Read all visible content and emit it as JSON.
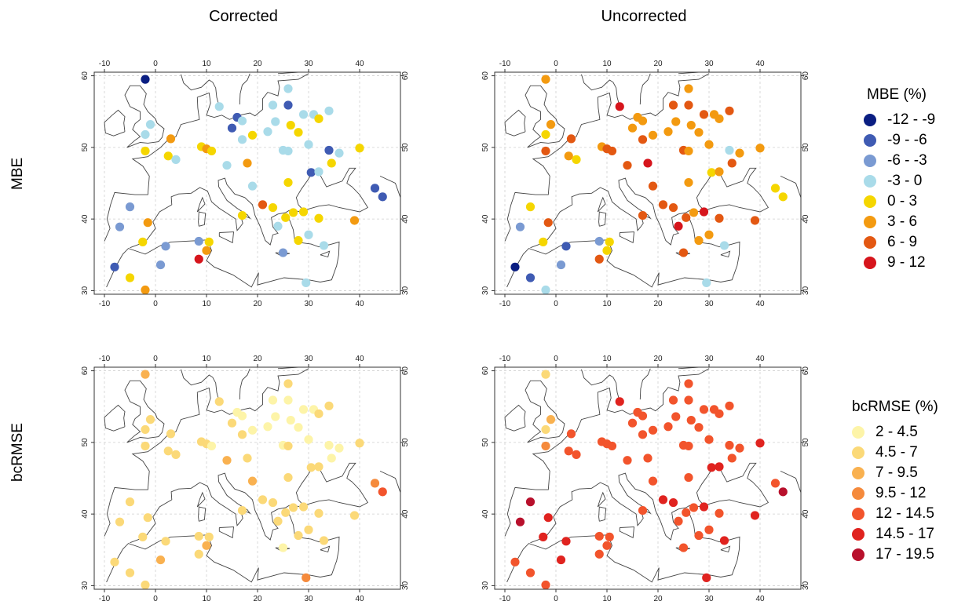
{
  "columns": [
    "Corrected",
    "Uncorrected"
  ],
  "rows": [
    "MBE",
    "bcRMSE"
  ],
  "axes": {
    "x_ticks": [
      "-10",
      "0",
      "10",
      "20",
      "30",
      "40"
    ],
    "x_values": [
      -10,
      0,
      10,
      20,
      30,
      40
    ],
    "y_ticks": [
      "30",
      "40",
      "50",
      "60"
    ],
    "y_values": [
      30,
      40,
      50,
      60
    ],
    "lon_range": [
      -12,
      48
    ],
    "lat_range": [
      29.5,
      60.5
    ]
  },
  "stations": [
    {
      "lon": -2,
      "lat": 59.5
    },
    {
      "lon": -1,
      "lat": 53.2
    },
    {
      "lon": -2,
      "lat": 51.8
    },
    {
      "lon": -2,
      "lat": 49.5
    },
    {
      "lon": 3,
      "lat": 51.2
    },
    {
      "lon": 2.5,
      "lat": 48.8
    },
    {
      "lon": 4,
      "lat": 48.3
    },
    {
      "lon": 9,
      "lat": 50.1
    },
    {
      "lon": 10,
      "lat": 49.8
    },
    {
      "lon": 11,
      "lat": 49.5
    },
    {
      "lon": 12.5,
      "lat": 55.7
    },
    {
      "lon": 15,
      "lat": 52.7
    },
    {
      "lon": 16,
      "lat": 54.2
    },
    {
      "lon": 17,
      "lat": 53.7
    },
    {
      "lon": 17,
      "lat": 51.1
    },
    {
      "lon": 19,
      "lat": 51.7
    },
    {
      "lon": 22,
      "lat": 52.2
    },
    {
      "lon": 23,
      "lat": 55.9
    },
    {
      "lon": 23.5,
      "lat": 53.6
    },
    {
      "lon": 26,
      "lat": 58.2
    },
    {
      "lon": 26,
      "lat": 55.9
    },
    {
      "lon": 26.5,
      "lat": 53.1
    },
    {
      "lon": 28,
      "lat": 52.1
    },
    {
      "lon": 29,
      "lat": 54.6
    },
    {
      "lon": 30,
      "lat": 50.4
    },
    {
      "lon": 31,
      "lat": 54.6
    },
    {
      "lon": 32,
      "lat": 54
    },
    {
      "lon": 34,
      "lat": 55.1
    },
    {
      "lon": 25,
      "lat": 49.6
    },
    {
      "lon": 26,
      "lat": 49.5
    },
    {
      "lon": 30.5,
      "lat": 46.5
    },
    {
      "lon": 32,
      "lat": 46.6
    },
    {
      "lon": 34,
      "lat": 49.6
    },
    {
      "lon": 34.5,
      "lat": 47.8
    },
    {
      "lon": 36,
      "lat": 49.2
    },
    {
      "lon": 40,
      "lat": 49.9
    },
    {
      "lon": 14,
      "lat": 47.5
    },
    {
      "lon": 18,
      "lat": 47.8
    },
    {
      "lon": 19,
      "lat": 44.6
    },
    {
      "lon": 26,
      "lat": 45.1
    },
    {
      "lon": 21,
      "lat": 42
    },
    {
      "lon": 23,
      "lat": 41.6
    },
    {
      "lon": 24,
      "lat": 39
    },
    {
      "lon": 25.5,
      "lat": 40.2
    },
    {
      "lon": 27,
      "lat": 40.9
    },
    {
      "lon": 29,
      "lat": 41
    },
    {
      "lon": 30,
      "lat": 37.8
    },
    {
      "lon": 32,
      "lat": 40.1
    },
    {
      "lon": 33,
      "lat": 36.3
    },
    {
      "lon": 28,
      "lat": 37
    },
    {
      "lon": 25,
      "lat": 35.3
    },
    {
      "lon": 29.5,
      "lat": 31.1
    },
    {
      "lon": 39,
      "lat": 39.8
    },
    {
      "lon": 43,
      "lat": 44.3
    },
    {
      "lon": 44.5,
      "lat": 43.1
    },
    {
      "lon": 17,
      "lat": 40.5
    },
    {
      "lon": 10.5,
      "lat": 36.8
    },
    {
      "lon": 10,
      "lat": 35.6
    },
    {
      "lon": 8.5,
      "lat": 36.9
    },
    {
      "lon": 8.5,
      "lat": 34.4
    },
    {
      "lon": 2,
      "lat": 36.2
    },
    {
      "lon": 1,
      "lat": 33.6
    },
    {
      "lon": -2.5,
      "lat": 36.8
    },
    {
      "lon": -1.5,
      "lat": 39.5
    },
    {
      "lon": -5,
      "lat": 41.7
    },
    {
      "lon": -7,
      "lat": 38.9
    },
    {
      "lon": -8,
      "lat": 33.3
    },
    {
      "lon": -5,
      "lat": 31.8
    },
    {
      "lon": -2,
      "lat": 30.1
    }
  ],
  "panels": {
    "mbe_corrected": [
      0,
      3,
      3,
      4,
      5,
      4,
      3,
      4,
      5,
      4,
      3,
      1,
      1,
      3,
      3,
      4,
      3,
      3,
      3,
      3,
      1,
      4,
      4,
      3,
      3,
      3,
      4,
      3,
      3,
      3,
      1,
      3,
      1,
      4,
      3,
      4,
      3,
      5,
      3,
      4,
      6,
      4,
      3,
      4,
      4,
      4,
      3,
      4,
      3,
      4,
      2,
      3,
      5,
      1,
      1,
      4,
      4,
      5,
      2,
      7,
      2,
      2,
      4,
      5,
      2,
      2,
      1,
      4,
      5
    ],
    "mbe_uncorrected": [
      5,
      5,
      4,
      6,
      6,
      5,
      4,
      5,
      6,
      6,
      7,
      5,
      5,
      5,
      6,
      5,
      5,
      6,
      5,
      5,
      6,
      5,
      5,
      6,
      5,
      5,
      5,
      6,
      6,
      5,
      4,
      5,
      3,
      6,
      5,
      5,
      6,
      7,
      6,
      5,
      6,
      6,
      7,
      6,
      5,
      7,
      5,
      6,
      3,
      5,
      6,
      3,
      6,
      4,
      4,
      6,
      4,
      4,
      2,
      6,
      1,
      2,
      4,
      6,
      4,
      2,
      0,
      1,
      3
    ],
    "rmse_corrected": [
      2,
      1,
      1,
      1,
      1,
      1,
      1,
      1,
      1,
      0,
      1,
      1,
      0,
      0,
      1,
      0,
      0,
      0,
      0,
      1,
      0,
      0,
      0,
      0,
      0,
      0,
      1,
      1,
      0,
      1,
      1,
      1,
      0,
      0,
      0,
      1,
      2,
      1,
      2,
      1,
      1,
      1,
      1,
      1,
      1,
      1,
      1,
      1,
      1,
      1,
      0,
      3,
      1,
      3,
      4,
      1,
      1,
      2,
      1,
      1,
      1,
      2,
      1,
      1,
      1,
      1,
      1,
      1,
      1
    ],
    "rmse_uncorrected": [
      1,
      2,
      1,
      3,
      4,
      4,
      4,
      4,
      4,
      4,
      5,
      4,
      4,
      4,
      4,
      4,
      4,
      4,
      4,
      4,
      4,
      4,
      4,
      4,
      4,
      4,
      4,
      4,
      4,
      4,
      5,
      5,
      4,
      4,
      4,
      5,
      4,
      4,
      4,
      4,
      5,
      5,
      4,
      4,
      4,
      5,
      4,
      4,
      5,
      4,
      4,
      5,
      5,
      4,
      6,
      4,
      4,
      4,
      4,
      4,
      5,
      5,
      5,
      5,
      6,
      6,
      4,
      4,
      4
    ]
  },
  "legends": {
    "mbe": {
      "title": "MBE (%)",
      "labels": [
        "-12 - -9",
        "-9 - -6",
        "-6 - -3",
        "-3 - 0",
        "0 - 3",
        "3 - 6",
        "6 - 9",
        "9 - 12"
      ],
      "colors": [
        "#0a1e82",
        "#3f5bb3",
        "#7a9ad2",
        "#a9dbe9",
        "#f5d600",
        "#f39a10",
        "#e35812",
        "#d6151c"
      ]
    },
    "rmse": {
      "title": "bcRMSE (%)",
      "labels": [
        "2 - 4.5",
        "4.5 - 7",
        "7 - 9.5",
        "9.5 - 12",
        "12 - 14.5",
        "14.5 - 17",
        "17 - 19.5"
      ],
      "colors": [
        "#fdf4a8",
        "#fbd978",
        "#f9b150",
        "#f58a3c",
        "#f2542c",
        "#e0231f",
        "#b8102c"
      ]
    }
  }
}
